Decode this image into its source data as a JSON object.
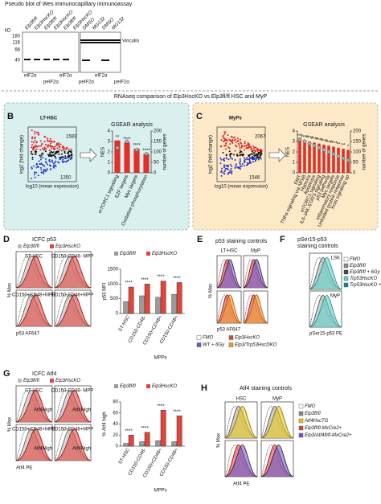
{
  "panel_a": {
    "title": "Pseudo blot of Wes immunocapillary immunoassay",
    "unit": "kD",
    "markers": [
      "180",
      "116",
      "66",
      "40"
    ],
    "lanes": [
      "Elp3fl/fl",
      "Elp3HscKO",
      "Elp3fl/fl",
      "Elp3HscKO",
      "Elp3fl/fl",
      "Elp3HscKO",
      "DMSO",
      "MG132",
      "DMSO",
      "MG132"
    ],
    "band": "Vinculin",
    "bottom_labels": [
      "eIF2α",
      "peIF2α",
      "eIF2α",
      "peIF2α",
      "eIF2α",
      "peIF2α"
    ]
  },
  "rnaseq_title": "RNAseq comparison of Elp3HscKO vs Elp3fl/fl HSC and MyP",
  "panel_b": {
    "label": "B",
    "name": "LT-HSC",
    "up": "1583",
    "down": "1350",
    "ylabel": "log2 (fold change)",
    "xlabel": "log10 (mean expression)",
    "chart": {
      "type": "bar",
      "title": "GSEAR analysis",
      "ylabel": "NES",
      "y2label": "number of genes",
      "categories": [
        "mTORC1 signalling",
        "E2F targets",
        "Myc targets",
        "Oxidative phosphorylation"
      ],
      "values": [
        3.1,
        2.9,
        2.3,
        1.8
      ],
      "genes": [
        120,
        150,
        110,
        90
      ],
      "annotations": [
        "**",
        "****",
        "****",
        "****"
      ],
      "ylim": [
        0,
        4
      ],
      "yticks": [
        0,
        1,
        2,
        3,
        4
      ],
      "y2lim": [
        0,
        200
      ],
      "y2ticks": [
        0,
        50,
        100,
        150,
        200
      ]
    }
  },
  "panel_c": {
    "label": "C",
    "name": "MyPs",
    "up": "2067",
    "down": "1546",
    "ylabel": "log2 (fold change)",
    "xlabel": "log10 (mean expression)",
    "chart": {
      "type": "bar",
      "title": "GSEAR analysis",
      "ylabel": "NES",
      "y2label": "number of genes",
      "categories": [
        "EMT",
        "TNFα signaling via NFkB",
        "Hypoxia",
        "Apoptosis",
        "mTORC1 signaling",
        "IL6-JAK-STAT3 signaling",
        "p53 pathway",
        "Myc targets",
        "Inflammatory response",
        "Unfolded protein response",
        "Kras signaling up"
      ],
      "values": [
        3.2,
        3.1,
        3.0,
        2.9,
        2.8,
        2.7,
        2.6,
        2.5,
        2.4,
        2.3,
        2.2
      ],
      "genes": [
        160,
        150,
        140,
        130,
        120,
        110,
        100,
        90,
        80,
        70,
        60
      ],
      "annotations": [
        "***",
        "****",
        "****",
        "****",
        "****",
        "****",
        "****",
        "****",
        "**",
        "**",
        "*"
      ],
      "ylim": [
        0,
        4
      ],
      "yticks": [
        0,
        1,
        2,
        3,
        4
      ],
      "y2lim": [
        0,
        200
      ],
      "y2ticks": [
        0,
        50,
        100,
        150,
        200
      ]
    }
  },
  "panel_d": {
    "label": "D",
    "title": "ICFC p53",
    "legend": [
      "Elp3fl/fl",
      "Elp3HscKO"
    ],
    "hist_labels": [
      "ST-HSC",
      "CD150-CD48- MPP",
      "CD150+CD48+MPP",
      "CD150-CD48+MPP"
    ],
    "xlabel": "p53 AF647",
    "ylabel": "% Max",
    "chart": {
      "type": "bar",
      "ylabel": "p53 MFI",
      "group_label": "MPPs",
      "categories": [
        "ST-HSC",
        "CD150-CD48-",
        "CD150+CD48+",
        "CD150-CD48+"
      ],
      "series": [
        {
          "name": "Elp3fl/fl",
          "color": "#9a9a9a",
          "values": [
            400,
            600,
            550,
            650
          ]
        },
        {
          "name": "Elp3HscKO",
          "color": "#e0453c",
          "values": [
            900,
            1000,
            1100,
            1050
          ]
        }
      ],
      "annotations": [
        "****",
        "****",
        "****",
        "****"
      ],
      "ylim": [
        0,
        1500
      ],
      "yticks": [
        0,
        500,
        1000,
        1500
      ]
    }
  },
  "panel_e": {
    "label": "E",
    "title": "p53 staining controls",
    "columns": [
      "LT-HSC",
      "MyP"
    ],
    "xlabel": "p53 AF647",
    "ylabel": "% Max",
    "legend": [
      "FMO",
      "Elp3HscKO",
      "WT + 6Gy",
      "Elp3/Trp53HscDKO"
    ]
  },
  "panel_f": {
    "label": "F",
    "title": [
      "pSer15-p53",
      "staining controls"
    ],
    "rows": [
      "LSK",
      "MyP"
    ],
    "xlabel": "pSer15-p53 PE",
    "legend": [
      "FMO",
      "Elp3fl/fl",
      "Elp3fl/fl + 6Gy",
      "Trp53HscKO",
      "Trp53HscKO + 6Gy"
    ]
  },
  "panel_g": {
    "label": "G",
    "title": "ICFC Atf4",
    "legend": [
      "Elp3fl/fl",
      "Elp3HscKO"
    ],
    "hist_labels": [
      "ST-HSC",
      "CD150-CD48- MPP",
      "CD150+CD48+MPP",
      "CD150-CD48+MPP"
    ],
    "gate": "Atf4High",
    "xlabel": "Atf4 PE",
    "ylabel": "% Max",
    "chart": {
      "type": "bar",
      "ylabel": "% Atf4 high",
      "group_label": "MPPs",
      "categories": [
        "ST-HSC",
        "CD150-CD48-",
        "CD150+CD48+",
        "CD150-CD48+"
      ],
      "series": [
        {
          "name": "Elp3fl/fl",
          "color": "#9a9a9a",
          "values": [
            5,
            8,
            10,
            8
          ]
        },
        {
          "name": "Elp3HscKO",
          "color": "#e0453c",
          "values": [
            20,
            25,
            65,
            55
          ]
        }
      ],
      "annotations": [
        "****",
        "****",
        "****",
        "****"
      ],
      "ylim": [
        0,
        80
      ],
      "yticks": [
        0,
        20,
        40,
        60,
        80
      ]
    }
  },
  "panel_h": {
    "label": "H",
    "title": "Atf4 staining controls",
    "columns": [
      "HSC",
      "MyP"
    ],
    "xlabel": "Atf4 PE",
    "ylabel": "% Max",
    "legend": [
      "FMO",
      "Elp3fl/fl",
      "Atf4HscTG",
      "Elp3fl/fl-MxCre2+",
      "Elp3/Atf4fl/fl-MxCre2+"
    ]
  }
}
